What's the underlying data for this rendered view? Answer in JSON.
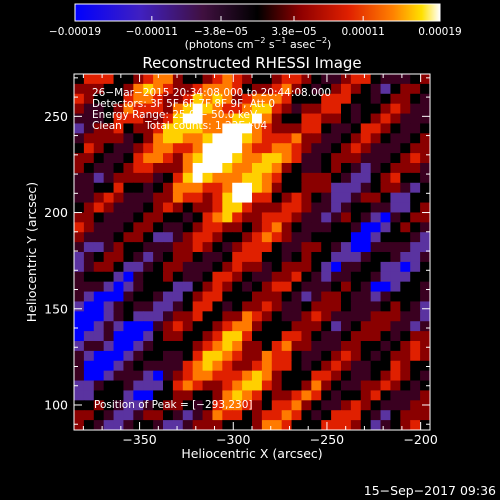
{
  "chart_data": {
    "type": "heatmap",
    "title": "Reconstructed RHESSI Image",
    "xlabel": "Heliocentric X (arcsec)",
    "ylabel": "Heliocentric Y (arcsec)",
    "xlim": [
      -385,
      -195
    ],
    "ylim": [
      87,
      272
    ],
    "x_ticks": [
      -350,
      -300,
      -250,
      -200
    ],
    "x_tick_labels": [
      "−350",
      "−300",
      "−250",
      "−200"
    ],
    "y_ticks": [
      100,
      150,
      200,
      250
    ],
    "y_tick_labels": [
      "100",
      "150",
      "200",
      "250"
    ],
    "colorbar": {
      "range": [
        -0.00019,
        0.00019
      ],
      "ticks": [
        -0.00019,
        -0.00011,
        -3.8e-05,
        3.8e-05,
        0.00011,
        0.00019
      ],
      "tick_labels": [
        "−0.00019",
        "−0.00011",
        "−3.8e−05",
        "3.8e−05",
        "0.00011",
        "0.00019"
      ],
      "units_main": "(photons cm",
      "units_exp1": "−2",
      "units_mid": " s",
      "units_exp2": "−1",
      "units_mid2": " asec",
      "units_exp3": "−2",
      "units_end": ")"
    },
    "colors": [
      "#0000ff",
      "#5a33a0",
      "#3a0020",
      "#000000",
      "#8a0000",
      "#e02000",
      "#ff7a00",
      "#ffd000",
      "#ffffff"
    ],
    "annotations": {
      "time_range": "26−Mar−2015 20:34:08.000 to 20:44:08.000",
      "detectors": "Detectors: 3F 5F 6F 7F 8F 9F, Att 0",
      "energy_range": "Energy Range: 25.0 − 50.0 keV",
      "clean": "Clean       Total counts: 1.22E+04",
      "peak": "Position of Peak = [−293,230]"
    }
  },
  "footer": {
    "timestamp": "15−Sep−2017 09:36"
  }
}
